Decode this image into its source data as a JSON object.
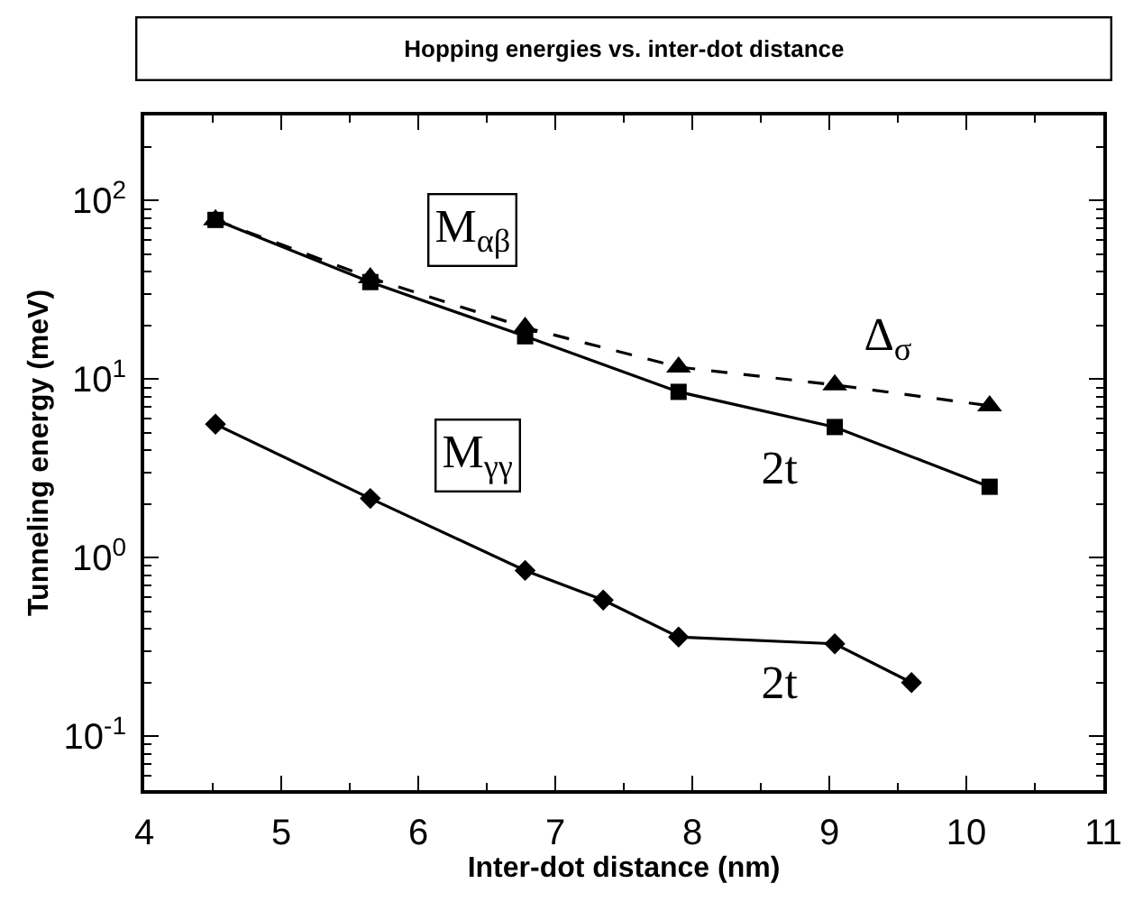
{
  "chart_data": {
    "type": "line",
    "title": "Hopping energies vs. inter-dot distance",
    "xlabel": "Inter-dot distance (nm)",
    "ylabel": "Tunneling energy (meV)",
    "log": "y",
    "xlim": [
      4,
      11
    ],
    "xticks": [
      4,
      5,
      6,
      7,
      8,
      9,
      10,
      11
    ],
    "ylim": [
      0.05,
      300
    ],
    "yticks": [
      {
        "value": 0.1,
        "label": "10$^{-1}$"
      },
      {
        "value": 1,
        "label": "10$^{0}$"
      },
      {
        "value": 10,
        "label": "10$^{1}$"
      },
      {
        "value": 100,
        "label": "10$^{2}$"
      }
    ],
    "series": [
      {
        "color": "#000000",
        "marker": "triangle",
        "line_style": "dashed",
        "x": [
          4.52,
          5.65,
          6.78,
          7.9,
          9.04,
          10.17
        ],
        "values": [
          78,
          37,
          19.5,
          11.7,
          9.3,
          7.1
        ]
      },
      {
        "color": "#000000",
        "marker": "square",
        "line_style": "solid",
        "x": [
          4.52,
          5.65,
          6.78,
          7.9,
          9.04,
          10.17
        ],
        "values": [
          78,
          35,
          17.4,
          8.5,
          5.4,
          2.5
        ]
      },
      {
        "color": "#000000",
        "marker": "diamond",
        "line_style": "solid",
        "x": [
          4.52,
          5.65,
          6.78,
          7.35,
          7.9,
          9.04,
          9.6
        ],
        "values": [
          5.6,
          2.15,
          0.85,
          0.58,
          0.36,
          0.33,
          0.2
        ]
      }
    ],
    "annotations": [
      "M$_{αβ}$",
      "Δ$_{σ}$",
      "2t",
      "M$_{γγ}$",
      "2t"
    ]
  }
}
